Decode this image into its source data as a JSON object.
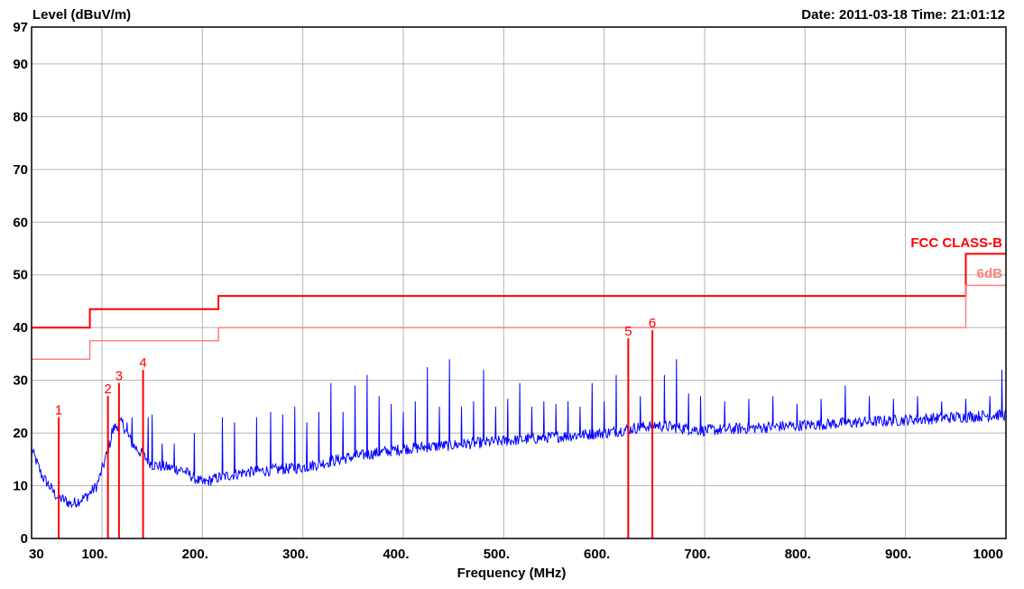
{
  "header": {
    "ylabel": "Level (dBuV/m)",
    "date_time": "Date: 2011-03-18  Time: 21:01:12"
  },
  "chart_data": {
    "type": "line",
    "title": "",
    "xlabel": "Frequency (MHz)",
    "ylabel": "Level (dBuV/m)",
    "xlim": [
      30,
      1000
    ],
    "ylim": [
      0,
      97
    ],
    "grid": true,
    "x_ticks": [
      {
        "v": 30,
        "label": "30"
      },
      {
        "v": 100,
        "label": "100."
      },
      {
        "v": 200,
        "label": "200."
      },
      {
        "v": 300,
        "label": "300."
      },
      {
        "v": 400,
        "label": "400."
      },
      {
        "v": 500,
        "label": "500."
      },
      {
        "v": 600,
        "label": "600."
      },
      {
        "v": 700,
        "label": "700."
      },
      {
        "v": 800,
        "label": "800."
      },
      {
        "v": 900,
        "label": "900."
      },
      {
        "v": 1000,
        "label": "1000"
      }
    ],
    "y_ticks": [
      {
        "v": 0,
        "label": "0"
      },
      {
        "v": 10,
        "label": "10"
      },
      {
        "v": 20,
        "label": "20"
      },
      {
        "v": 30,
        "label": "30"
      },
      {
        "v": 40,
        "label": "40"
      },
      {
        "v": 50,
        "label": "50"
      },
      {
        "v": 60,
        "label": "60"
      },
      {
        "v": 70,
        "label": "70"
      },
      {
        "v": 80,
        "label": "80"
      },
      {
        "v": 90,
        "label": "90"
      },
      {
        "v": 97,
        "label": "97"
      }
    ],
    "limit_lines": [
      {
        "name": "FCC CLASS-B",
        "color": "#ff0000",
        "points": [
          [
            30,
            40
          ],
          [
            88,
            40
          ],
          [
            88,
            43.5
          ],
          [
            216,
            43.5
          ],
          [
            216,
            46
          ],
          [
            960,
            46
          ],
          [
            960,
            54
          ],
          [
            1000,
            54
          ]
        ]
      },
      {
        "name": "6dB",
        "color": "#ff8080",
        "points": [
          [
            30,
            34
          ],
          [
            88,
            34
          ],
          [
            88,
            37.5
          ],
          [
            216,
            37.5
          ],
          [
            216,
            40
          ],
          [
            960,
            40
          ],
          [
            960,
            48
          ],
          [
            1000,
            48
          ]
        ]
      }
    ],
    "markers": [
      {
        "label": "1",
        "freq": 57,
        "level": 23
      },
      {
        "label": "2",
        "freq": 106,
        "level": 27
      },
      {
        "label": "3",
        "freq": 117,
        "level": 29.5
      },
      {
        "label": "4",
        "freq": 141,
        "level": 32
      },
      {
        "label": "5",
        "freq": 624,
        "level": 38
      },
      {
        "label": "6",
        "freq": 648,
        "level": 39.5
      }
    ],
    "series": [
      {
        "color": "#0000ff",
        "baseline": [
          [
            30,
            17
          ],
          [
            40,
            12
          ],
          [
            55,
            8
          ],
          [
            70,
            6.5
          ],
          [
            85,
            8
          ],
          [
            95,
            10
          ],
          [
            105,
            16
          ],
          [
            112,
            21
          ],
          [
            120,
            22
          ],
          [
            130,
            18
          ],
          [
            150,
            14
          ],
          [
            180,
            13
          ],
          [
            200,
            10.5
          ],
          [
            215,
            11.5
          ],
          [
            240,
            12.5
          ],
          [
            300,
            13.5
          ],
          [
            350,
            15.5
          ],
          [
            400,
            17
          ],
          [
            500,
            18.5
          ],
          [
            600,
            20
          ],
          [
            650,
            21.5
          ],
          [
            700,
            20.5
          ],
          [
            800,
            21.5
          ],
          [
            900,
            22.5
          ],
          [
            1000,
            23.5
          ]
        ],
        "spikes": [
          [
            57,
            17
          ],
          [
            110,
            21
          ],
          [
            117,
            24.5
          ],
          [
            125,
            22
          ],
          [
            130,
            23
          ],
          [
            141,
            24
          ],
          [
            146,
            23
          ],
          [
            150,
            23.5
          ],
          [
            160,
            18
          ],
          [
            172,
            18
          ],
          [
            192,
            20
          ],
          [
            220,
            23
          ],
          [
            232,
            22
          ],
          [
            254,
            23
          ],
          [
            268,
            24
          ],
          [
            280,
            23.5
          ],
          [
            292,
            25
          ],
          [
            304,
            22
          ],
          [
            316,
            24
          ],
          [
            328,
            29.5
          ],
          [
            340,
            24
          ],
          [
            352,
            29
          ],
          [
            364,
            31
          ],
          [
            376,
            27
          ],
          [
            388,
            25.5
          ],
          [
            400,
            24
          ],
          [
            412,
            26
          ],
          [
            424,
            32.5
          ],
          [
            436,
            25
          ],
          [
            446,
            34
          ],
          [
            458,
            25
          ],
          [
            470,
            26
          ],
          [
            480,
            32
          ],
          [
            492,
            25
          ],
          [
            504,
            26.5
          ],
          [
            516,
            29.5
          ],
          [
            528,
            25
          ],
          [
            540,
            26
          ],
          [
            552,
            25.5
          ],
          [
            564,
            26
          ],
          [
            576,
            25
          ],
          [
            588,
            29.5
          ],
          [
            600,
            26
          ],
          [
            612,
            31
          ],
          [
            624,
            37
          ],
          [
            636,
            27
          ],
          [
            648,
            30.5
          ],
          [
            660,
            31
          ],
          [
            672,
            34
          ],
          [
            684,
            27.5
          ],
          [
            696,
            27
          ],
          [
            720,
            26
          ],
          [
            744,
            26.5
          ],
          [
            768,
            27
          ],
          [
            792,
            25.5
          ],
          [
            816,
            26.5
          ],
          [
            840,
            29
          ],
          [
            864,
            27
          ],
          [
            888,
            26.5
          ],
          [
            912,
            27
          ],
          [
            936,
            26
          ],
          [
            960,
            26.5
          ],
          [
            984,
            27
          ],
          [
            996,
            32
          ]
        ]
      }
    ]
  }
}
